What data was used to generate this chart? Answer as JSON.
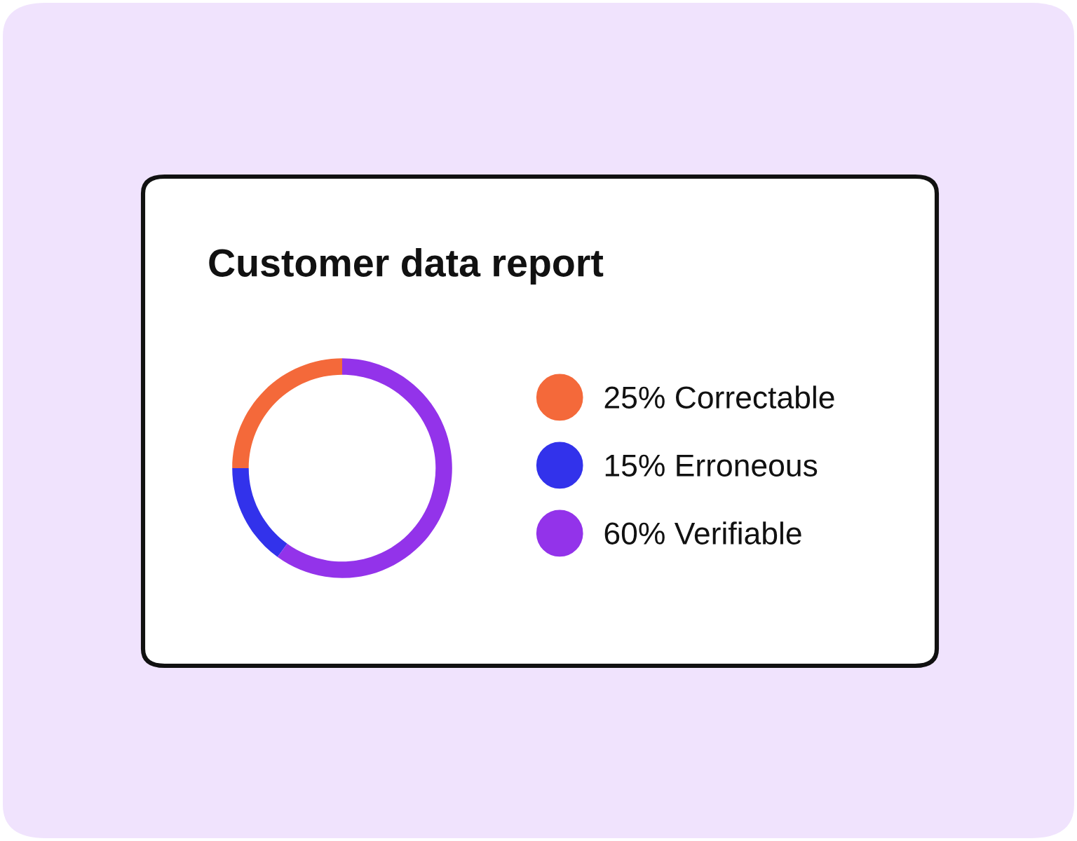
{
  "chart_data": {
    "type": "donut",
    "title": "Customer data report",
    "categories": [
      "Correctable",
      "Erroneous",
      "Verifiable"
    ],
    "values": [
      25,
      15,
      60
    ],
    "value_labels": [
      "25%",
      "15%",
      "60%"
    ],
    "colors": [
      "#f4693a",
      "#3232eb",
      "#9333ea"
    ],
    "legend": "right"
  }
}
